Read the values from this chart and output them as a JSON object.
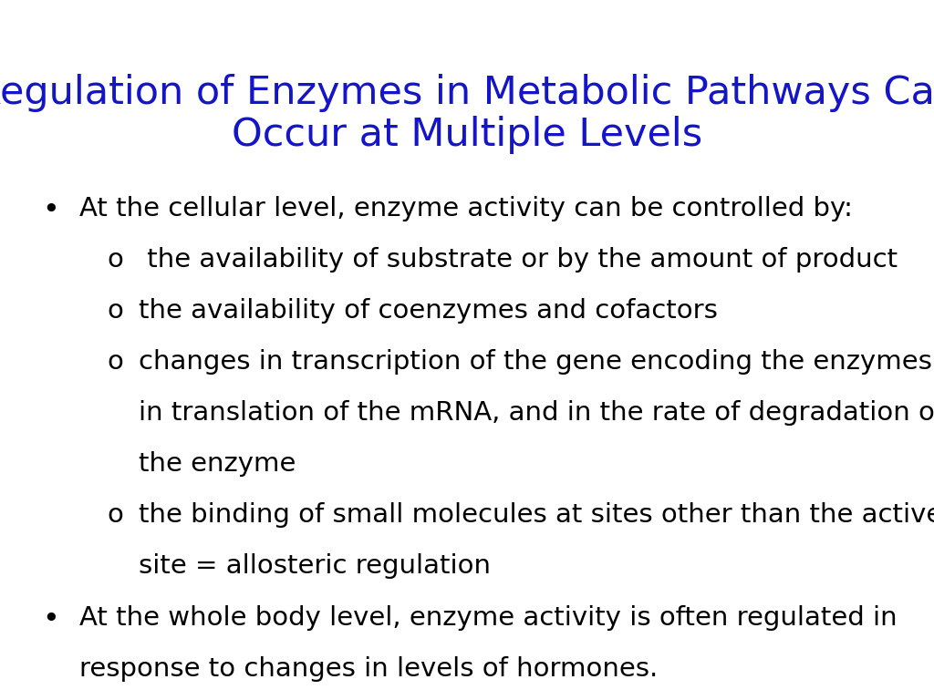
{
  "title_line1": "Regulation of Enzymes in Metabolic Pathways Can",
  "title_line2": "Occur at Multiple Levels",
  "title_color": "#1414c8",
  "title_fontsize": 31,
  "background_color": "#ffffff",
  "body_fontsize": 21,
  "body_color": "#000000",
  "bullet1": "At the cellular level, enzyme activity can be controlled by:",
  "sub1a": " the availability of substrate or by the amount of product",
  "sub1b": "the availability of coenzymes and cofactors",
  "sub1c_line1": "changes in transcription of the gene encoding the enzymes,",
  "sub1c_line2": "in translation of the mRNA, and in the rate of degradation of",
  "sub1c_line3": "the enzyme",
  "sub1d_line1": "the binding of small molecules at sites other than the active",
  "sub1d_line2": "site = allosteric regulation",
  "bullet2_line1": "At the whole body level, enzyme activity is often regulated in",
  "bullet2_line2": "response to changes in levels of hormones."
}
